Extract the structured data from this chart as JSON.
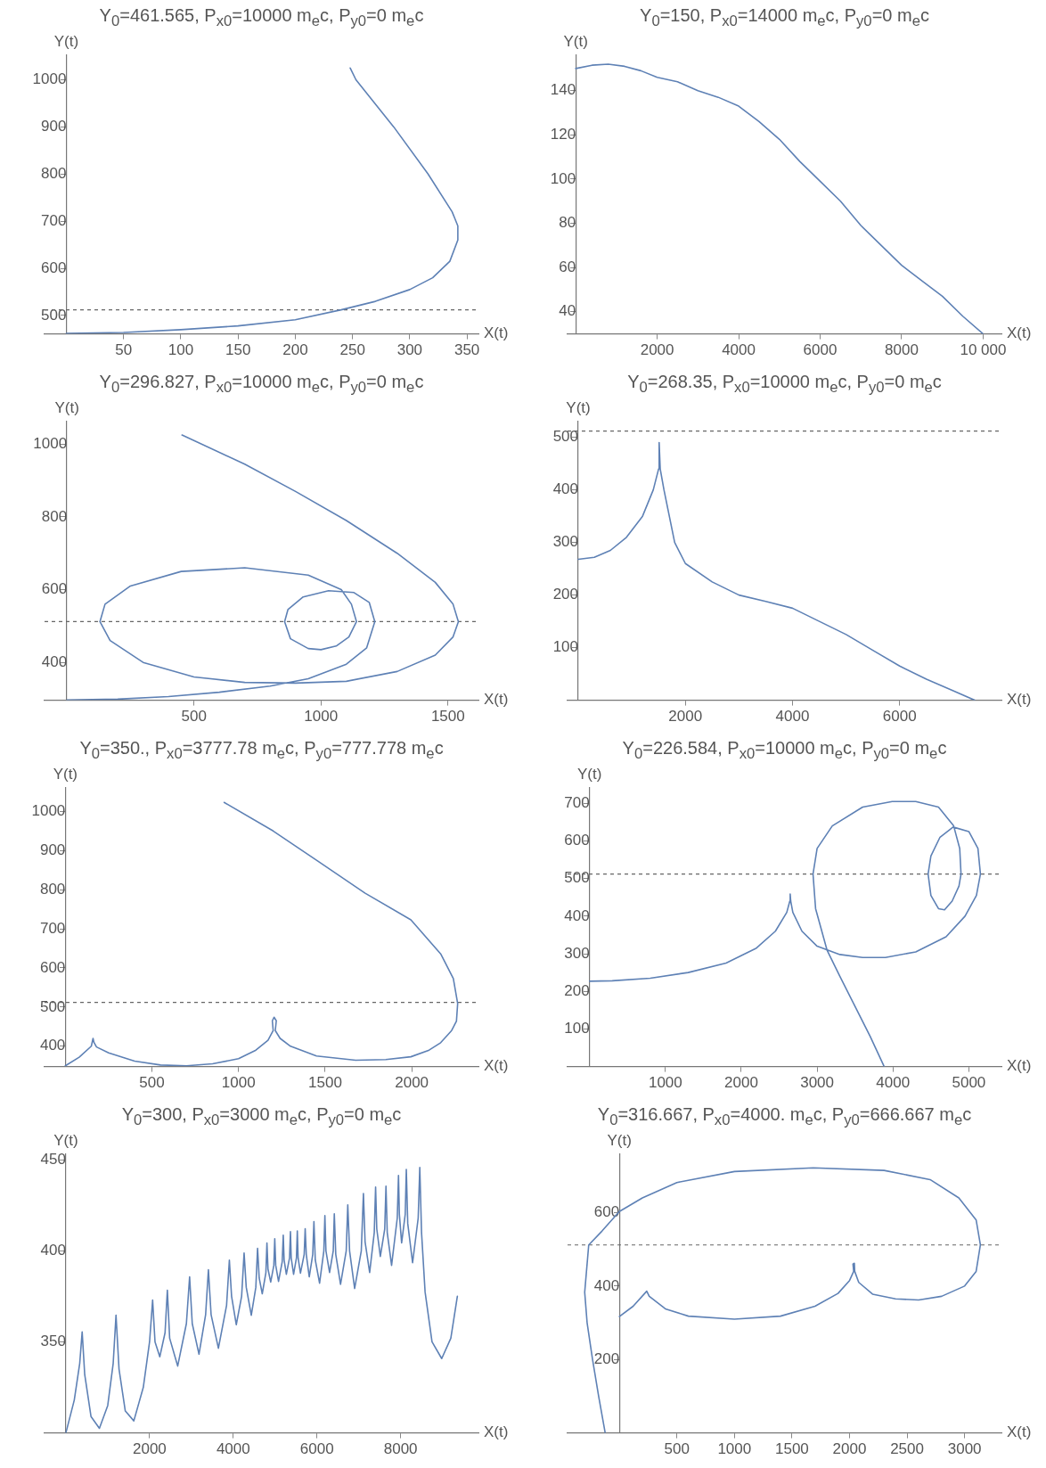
{
  "chart_data": [
    {
      "type": "line",
      "title": "Y$_{0}$=461.565, P$_{x0}$=10000 m$_{e}$c, P$_{y0}$=0 m$_{e}$c",
      "xlabel": "X(t)",
      "ylabel": "Y(t)",
      "color": "#5e81b5",
      "marker": "none",
      "line_style": "solid",
      "x": [
        0,
        50,
        100,
        150,
        200,
        240,
        270,
        300,
        320,
        335,
        342,
        342,
        337,
        316,
        286,
        253,
        248
      ],
      "values": [
        462,
        464,
        470,
        478,
        491,
        512,
        530,
        555,
        580,
        615,
        660,
        690,
        720,
        800,
        900,
        1000,
        1025
      ],
      "xlim": [
        -19,
        360
      ],
      "ylim": [
        461,
        1052
      ],
      "xticks": [
        50,
        100,
        150,
        200,
        250,
        300,
        350
      ],
      "yticks": [
        500,
        600,
        700,
        800,
        900,
        1000
      ],
      "ref_lines": [
        {
          "axis": "y",
          "value": 512,
          "color": "#666666",
          "line_style": "dashed"
        }
      ]
    },
    {
      "type": "line",
      "title": "Y$_{0}$=150, P$_{x0}$=14000 m$_{e}$c, P$_{y0}$=0 m$_{e}$c",
      "xlabel": "X(t)",
      "ylabel": "Y(t)",
      "color": "#5e81b5",
      "marker": "none",
      "line_style": "solid",
      "x": [
        0,
        400,
        800,
        1200,
        1600,
        2000,
        2500,
        3000,
        3500,
        4000,
        4500,
        5000,
        5500,
        6000,
        6500,
        7000,
        7500,
        8000,
        8500,
        9000,
        9500,
        10000
      ],
      "values": [
        150,
        151.5,
        152,
        151,
        149,
        146,
        144,
        140,
        137,
        133,
        126,
        118,
        108,
        99,
        90,
        79,
        70,
        61,
        54,
        47,
        38,
        30
      ],
      "xlim": [
        -200,
        10450
      ],
      "ylim": [
        30,
        156
      ],
      "xticks": [
        2000,
        4000,
        6000,
        8000,
        {
          "value": 10000,
          "label": "10 000"
        }
      ],
      "yticks": [
        40,
        60,
        80,
        100,
        120,
        140
      ]
    },
    {
      "type": "line",
      "title": "Y$_{0}$=296.827, P$_{x0}$=10000 m$_{e}$c, P$_{y0}$=0 m$_{e}$c",
      "xlabel": "X(t)",
      "ylabel": "Y(t)",
      "color": "#5e81b5",
      "marker": "none",
      "line_style": "solid",
      "x": [
        0,
        200,
        400,
        600,
        800,
        950,
        1100,
        1180,
        1212,
        1190,
        1130,
        1030,
        930,
        870,
        857,
        880,
        950,
        1000,
        1060,
        1110,
        1140,
        1120,
        1080,
        950,
        700,
        450,
        250,
        150,
        130,
        170,
        300,
        500,
        700,
        900,
        1100,
        1300,
        1450,
        1520,
        1541,
        1520,
        1450,
        1300,
        1100,
        900,
        700,
        453
      ],
      "values": [
        297,
        299,
        306,
        318,
        335,
        355,
        395,
        440,
        512,
        565,
        592,
        597,
        580,
        545,
        512,
        465,
        438,
        435,
        445,
        470,
        512,
        560,
        600,
        640,
        660,
        650,
        610,
        560,
        512,
        460,
        400,
        360,
        345,
        343,
        348,
        375,
        420,
        470,
        512,
        560,
        620,
        700,
        790,
        870,
        945,
        1025
      ],
      "xlim": [
        -88,
        1620
      ],
      "ylim": [
        296,
        1062
      ],
      "xticks": [
        500,
        1000,
        1500
      ],
      "yticks": [
        400,
        600,
        800,
        1000
      ],
      "ref_lines": [
        {
          "axis": "y",
          "value": 512,
          "color": "#666666",
          "line_style": "dashed"
        }
      ]
    },
    {
      "type": "line",
      "title": "Y$_{0}$=268.35, P$_{x0}$=10000 m$_{e}$c, P$_{y0}$=0 m$_{e}$c",
      "xlabel": "X(t)",
      "ylabel": "Y(t)",
      "color": "#5e81b5",
      "marker": "none",
      "line_style": "solid",
      "x": [
        0,
        300,
        600,
        900,
        1200,
        1400,
        1500,
        1510,
        1530,
        1600,
        1800,
        2000,
        2500,
        3000,
        3500,
        4000,
        4500,
        5000,
        5500,
        6000,
        6500,
        7000,
        7400
      ],
      "values": [
        268,
        272,
        285,
        310,
        350,
        400,
        440,
        490,
        440,
        400,
        300,
        260,
        225,
        200,
        188,
        175,
        150,
        125,
        95,
        65,
        40,
        18,
        0
      ],
      "xlim": [
        -200,
        7900
      ],
      "ylim": [
        0,
        530
      ],
      "xticks": [
        2000,
        4000,
        6000
      ],
      "yticks": [
        100,
        200,
        300,
        400,
        500
      ],
      "ref_lines": [
        {
          "axis": "y",
          "value": 512,
          "color": "#666666",
          "line_style": "dashed"
        }
      ]
    },
    {
      "type": "line",
      "title": "Y$_{0}$=350., P$_{x0}$=3777.78 m$_{e}$c, P$_{y0}$=777.778 m$_{e}$c",
      "xlabel": "X(t)",
      "ylabel": "Y(t)",
      "color": "#5e81b5",
      "marker": "none",
      "line_style": "solid",
      "x": [
        0,
        80,
        150,
        160,
        165,
        180,
        250,
        400,
        550,
        700,
        850,
        1000,
        1100,
        1170,
        1200,
        1195,
        1205,
        1218,
        1212,
        1240,
        1300,
        1450,
        1676,
        1850,
        1995,
        2100,
        2167,
        2230,
        2258,
        2265,
        2240,
        2167,
        1995,
        1731,
        1458,
        1200,
        917
      ],
      "values": [
        350,
        372,
        400,
        420,
        410,
        398,
        383,
        362,
        352,
        350,
        355,
        368,
        390,
        415,
        440,
        465,
        474,
        465,
        440,
        420,
        400,
        375,
        364,
        366,
        373,
        390,
        409,
        440,
        464,
        509,
        573,
        636,
        723,
        791,
        873,
        950,
        1023
      ],
      "xlim": [
        -120,
        2385
      ],
      "ylim": [
        348,
        1060
      ],
      "xticks": [
        500,
        1000,
        1500,
        2000
      ],
      "yticks": [
        400,
        500,
        600,
        700,
        800,
        900,
        1000
      ],
      "ref_lines": [
        {
          "axis": "y",
          "value": 512,
          "color": "#666666",
          "line_style": "dashed"
        }
      ]
    },
    {
      "type": "line",
      "title": "Y$_{0}$=226.584, P$_{x0}$=10000 m$_{e}$c, P$_{y0}$=0 m$_{e}$c",
      "xlabel": "X(t)",
      "ylabel": "Y(t)",
      "color": "#5e81b5",
      "marker": "none",
      "line_style": "solid",
      "x": [
        0,
        300,
        800,
        1300,
        1800,
        2200,
        2450,
        2600,
        2640,
        2645,
        2652,
        2680,
        2800,
        3000,
        3300,
        3600,
        3900,
        4300,
        4700,
        4950,
        5100,
        5153,
        5120,
        5000,
        4793,
        4620,
        4500,
        4463,
        4500,
        4600,
        4680,
        4780,
        4870,
        4897,
        4880,
        4800,
        4600,
        4300,
        3990,
        3600,
        3200,
        3000,
        2946,
        2980,
        3130,
        3300,
        3500,
        3700,
        3884
      ],
      "values": [
        227,
        228,
        235,
        250,
        275,
        315,
        360,
        410,
        440,
        459,
        440,
        410,
        360,
        320,
        298,
        290,
        290,
        305,
        345,
        400,
        455,
        512,
        580,
        625,
        637,
        610,
        560,
        512,
        455,
        420,
        417,
        440,
        480,
        512,
        580,
        640,
        690,
        705,
        705,
        690,
        640,
        580,
        512,
        420,
        310,
        240,
        160,
        80,
        0
      ],
      "xlim": [
        -290,
        5430
      ],
      "ylim": [
        0,
        741
      ],
      "xticks": [
        1000,
        2000,
        3000,
        4000,
        5000
      ],
      "yticks": [
        100,
        200,
        300,
        400,
        500,
        600,
        700
      ],
      "ref_lines": [
        {
          "axis": "y",
          "value": 512,
          "color": "#666666",
          "line_style": "dashed"
        }
      ]
    },
    {
      "type": "line",
      "title": "Y$_{0}$=300, P$_{x0}$=3000 m$_{e}$c, P$_{y0}$=0 m$_{e}$c",
      "xlabel": "X(t)",
      "ylabel": "Y(t)",
      "color": "#5e81b5",
      "marker": "none",
      "line_style": "solid",
      "x": [
        0,
        200,
        330,
        389,
        450,
        600,
        801,
        1000,
        1130,
        1198,
        1270,
        1420,
        1624,
        1850,
        2000,
        2073,
        2130,
        2245,
        2370,
        2425,
        2480,
        2672,
        2880,
        2957,
        3020,
        3181,
        3340,
        3406,
        3470,
        3645,
        3840,
        3907,
        3960,
        4072,
        4200,
        4259,
        4310,
        4431,
        4540,
        4581,
        4620,
        4693,
        4780,
        4805,
        4830,
        4895,
        4970,
        4992,
        5015,
        5082,
        5170,
        5195,
        5215,
        5269,
        5345,
        5367,
        5385,
        5442,
        5510,
        5531,
        5550,
        5606,
        5695,
        5719,
        5745,
        5816,
        5900,
        5928,
        5960,
        6063,
        6165,
        6190,
        6215,
        6302,
        6390,
        6415,
        6450,
        6564,
        6700,
        6737,
        6780,
        6901,
        7060,
        7111,
        7150,
        7260,
        7370,
        7402,
        7430,
        7515,
        7620,
        7650,
        7680,
        7784,
        7920,
        7949,
        7970,
        8024,
        8110,
        8136,
        8170,
        8286,
        8420,
        8458,
        8500,
        8585,
        8750,
        8982,
        9200,
        9356
      ],
      "values": [
        300,
        318,
        338,
        355.5,
        332,
        309,
        302.5,
        315,
        338,
        364.6,
        335,
        312,
        306.6,
        325,
        350,
        372.9,
        350,
        341.8,
        355,
        378.3,
        352,
        336.7,
        360,
        385.7,
        360,
        343.2,
        365,
        389.6,
        365,
        346.5,
        370,
        394.9,
        375,
        359.4,
        375,
        398.8,
        380,
        364.6,
        380,
        401.4,
        385,
        376.4,
        388,
        404.3,
        390,
        382.8,
        392,
        406.6,
        392,
        383.2,
        394,
        408.6,
        395,
        387.1,
        396,
        410.5,
        396,
        387.1,
        396,
        410.9,
        396,
        387.7,
        398,
        412.1,
        398,
        385.7,
        398,
        416,
        395,
        382.2,
        400,
        419.3,
        400,
        388.1,
        400,
        420.3,
        398,
        381.6,
        400,
        425.2,
        400,
        379.3,
        400,
        431.4,
        405,
        388.1,
        410,
        435,
        412,
        396.9,
        412,
        435.5,
        410,
        392,
        418,
        441.4,
        420,
        404.3,
        420,
        444.7,
        415,
        393.4,
        418,
        445.7,
        410,
        377.3,
        350,
        340.8,
        352,
        375
      ],
      "xlim": [
        -510,
        9860
      ],
      "ylim": [
        300,
        453
      ],
      "xticks": [
        2000,
        4000,
        6000,
        8000
      ],
      "yticks": [
        350,
        400,
        450
      ]
    },
    {
      "type": "line",
      "title": "Y$_{0}$=316.667, P$_{x0}$=4000. m$_{e}$c, P$_{y0}$=666.667 m$_{e}$c",
      "xlabel": "X(t)",
      "ylabel": "Y(t)",
      "color": "#5e81b5",
      "marker": "none",
      "line_style": "solid",
      "x": [
        0,
        120,
        238,
        260,
        400,
        600,
        1000,
        1400,
        1700,
        1900,
        2000,
        2036,
        2030,
        2042,
        2045,
        2080,
        2200,
        2400,
        2600,
        2800,
        3000,
        3100,
        3137,
        3100,
        2950,
        2700,
        2300,
        1685,
        1000,
        500,
        200,
        0,
        -150,
        -266,
        -301,
        -280,
        -233,
        -180,
        -123
      ],
      "values": [
        317,
        345,
        386,
        372,
        338,
        318,
        310,
        318,
        345,
        380,
        415,
        440,
        460,
        462,
        440,
        410,
        378,
        365,
        362,
        372,
        400,
        440,
        512,
        580,
        640,
        690,
        715,
        722,
        712,
        682,
        640,
        603,
        550,
        512,
        383,
        300,
        200,
        100,
        0
      ],
      "xlim": [
        -450,
        3320
      ],
      "ylim": [
        0,
        759
      ],
      "xticks": [
        500,
        1000,
        1500,
        2000,
        2500,
        3000
      ],
      "yticks": [
        200,
        400,
        600
      ],
      "ref_lines": [
        {
          "axis": "y",
          "value": 512,
          "color": "#666666",
          "line_style": "dashed"
        }
      ]
    }
  ]
}
